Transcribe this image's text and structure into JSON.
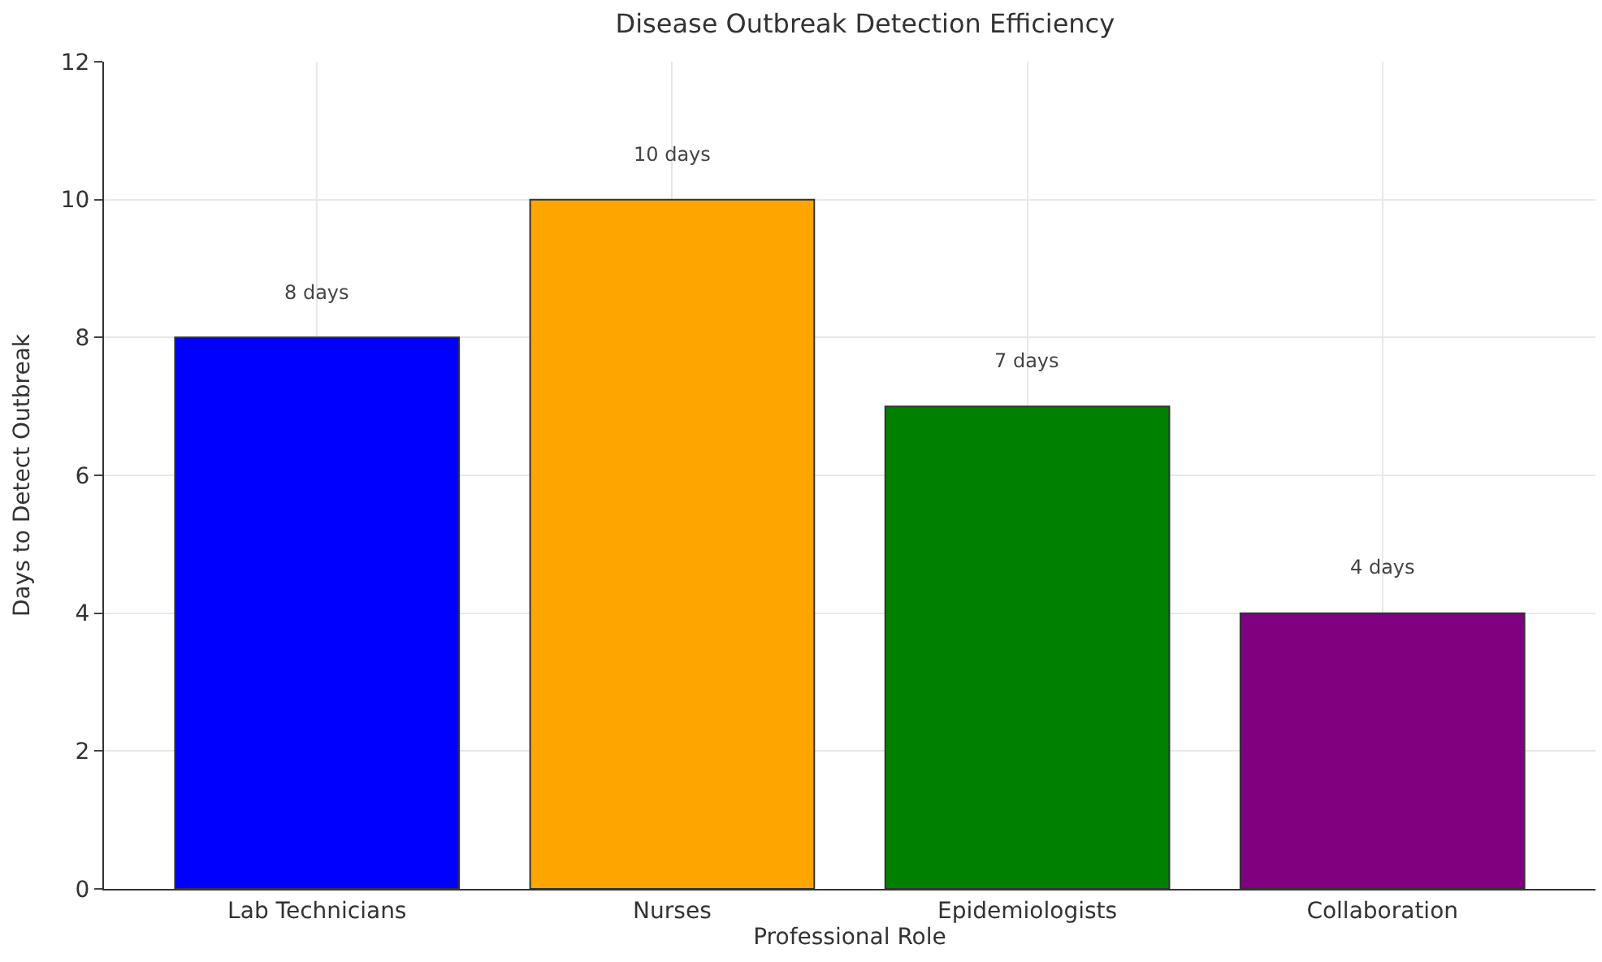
{
  "chart_data": {
    "type": "bar",
    "title": "Disease Outbreak Detection Efficiency",
    "xlabel": "Professional Role",
    "ylabel": "Days to Detect Outbreak",
    "categories": [
      "Lab Technicians",
      "Nurses",
      "Epidemiologists",
      "Collaboration"
    ],
    "values": [
      8,
      10,
      7,
      4
    ],
    "colors": [
      "#0000ff",
      "#ffa500",
      "#008000",
      "#800080"
    ],
    "value_labels": [
      "8 days",
      "10 days",
      "7 days",
      "4 days"
    ],
    "ylim": [
      0,
      12
    ],
    "yticks": [
      0,
      2,
      4,
      6,
      8,
      10,
      12
    ],
    "grid": true
  }
}
